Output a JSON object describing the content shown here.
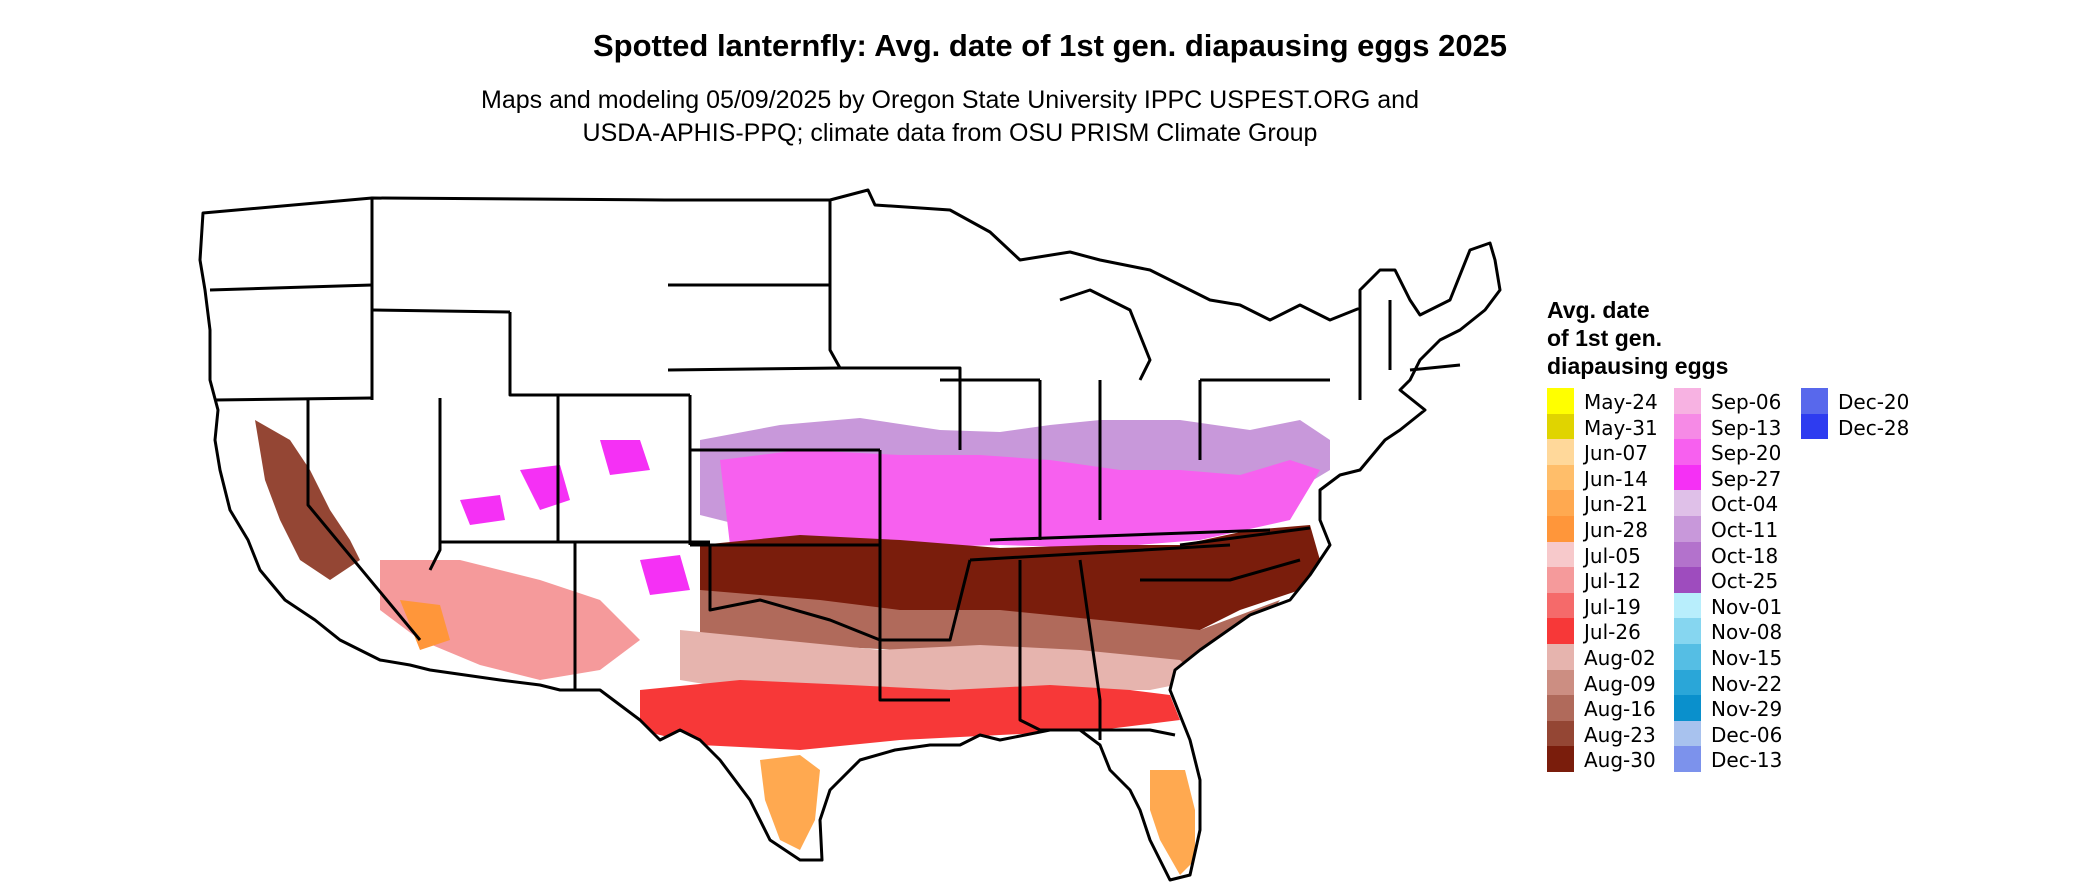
{
  "header": {
    "title": "Spotted lanternfly: Avg. date of 1st gen. diapausing eggs 2025",
    "subtitle_line1": "Maps and modeling 05/09/2025 by Oregon State University IPPC USPEST.ORG and",
    "subtitle_line2": "USDA-APHIS-PPQ; climate data from OSU PRISM Climate Group"
  },
  "legend": {
    "title_line1": "Avg. date",
    "title_line2": "of 1st gen.",
    "title_line3": "diapausing eggs",
    "columns": [
      [
        {
          "label": "May-24",
          "color": "#ffff00"
        },
        {
          "label": "May-31",
          "color": "#e0d400"
        },
        {
          "label": "Jun-07",
          "color": "#ffd89a"
        },
        {
          "label": "Jun-14",
          "color": "#ffbe6a"
        },
        {
          "label": "Jun-21",
          "color": "#ffa950"
        },
        {
          "label": "Jun-28",
          "color": "#ff963a"
        },
        {
          "label": "Jul-05",
          "color": "#f7c9cb"
        },
        {
          "label": "Jul-12",
          "color": "#f59a9b"
        },
        {
          "label": "Jul-19",
          "color": "#f56a6a"
        },
        {
          "label": "Jul-26",
          "color": "#f73838"
        },
        {
          "label": "Aug-02",
          "color": "#e6b4ae"
        },
        {
          "label": "Aug-09",
          "color": "#cc8e82"
        },
        {
          "label": "Aug-16",
          "color": "#b06a5b"
        },
        {
          "label": "Aug-23",
          "color": "#944634"
        },
        {
          "label": "Aug-30",
          "color": "#7a1d0c"
        }
      ],
      [
        {
          "label": "Sep-06",
          "color": "#f7b2e2"
        },
        {
          "label": "Sep-13",
          "color": "#f68ae6"
        },
        {
          "label": "Sep-20",
          "color": "#f760ef"
        },
        {
          "label": "Sep-27",
          "color": "#f530f5"
        },
        {
          "label": "Oct-04",
          "color": "#dfc0e8"
        },
        {
          "label": "Oct-11",
          "color": "#c898da"
        },
        {
          "label": "Oct-18",
          "color": "#b372cc"
        },
        {
          "label": "Oct-25",
          "color": "#9e4cbe"
        },
        {
          "label": "Nov-01",
          "color": "#b8eefc"
        },
        {
          "label": "Nov-08",
          "color": "#86d6f0"
        },
        {
          "label": "Nov-15",
          "color": "#55bee4"
        },
        {
          "label": "Nov-22",
          "color": "#2aa6d8"
        },
        {
          "label": "Nov-29",
          "color": "#0a90cc"
        },
        {
          "label": "Dec-06",
          "color": "#a8c2ee"
        },
        {
          "label": "Dec-13",
          "color": "#7c92ec"
        }
      ],
      [
        {
          "label": "Dec-20",
          "color": "#5868ec"
        },
        {
          "label": "Dec-28",
          "color": "#2e3cf0"
        }
      ]
    ]
  }
}
